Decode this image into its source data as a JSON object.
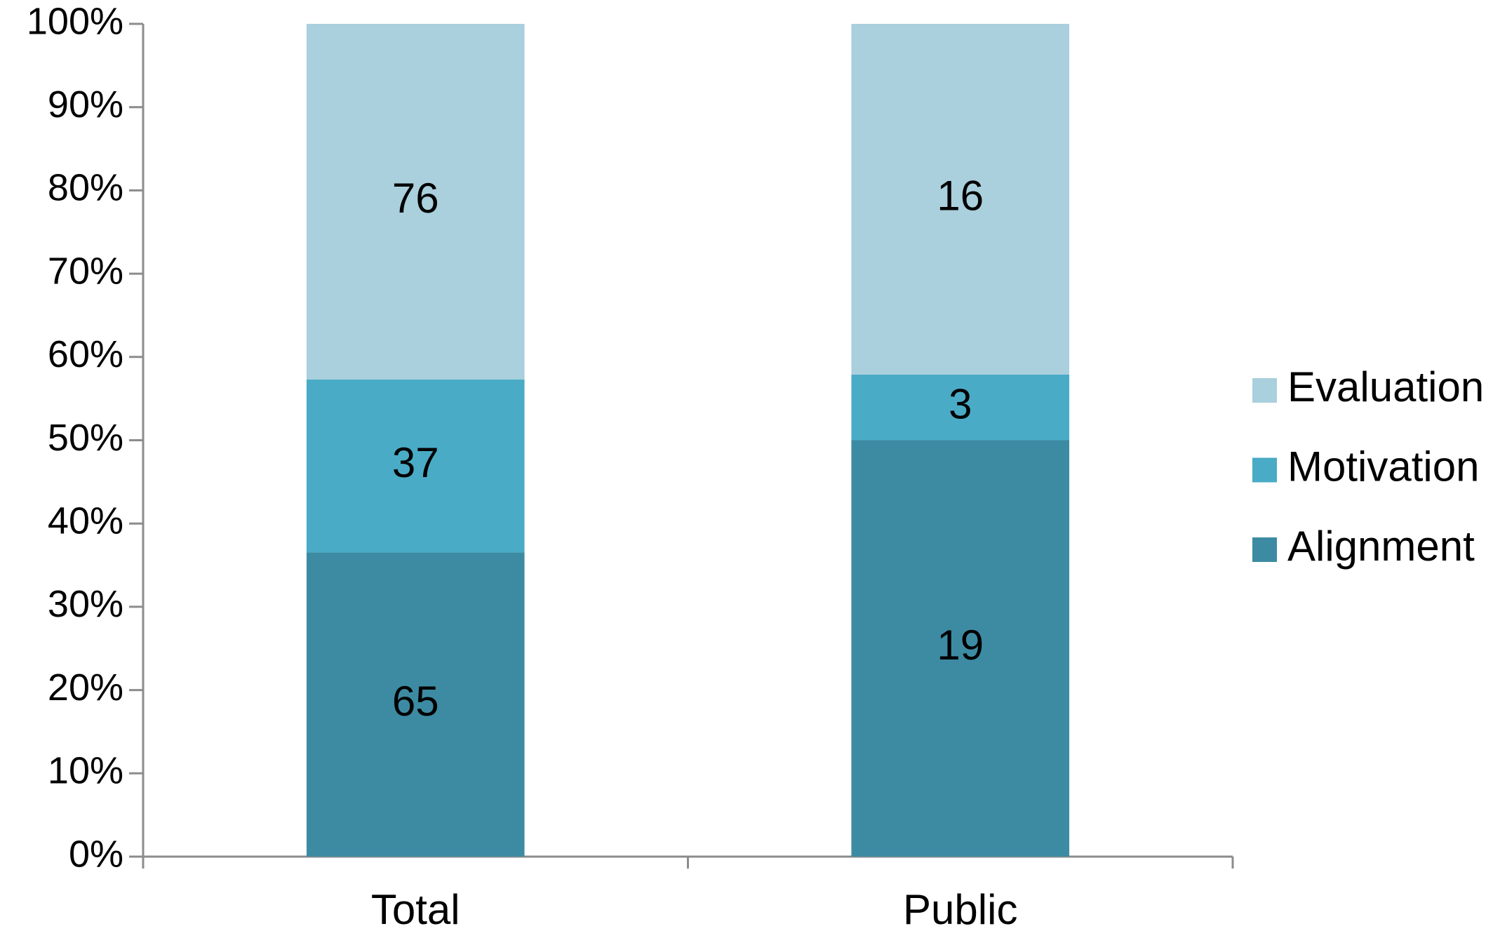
{
  "chart_data": {
    "type": "bar",
    "stack": "percent",
    "categories": [
      "Total",
      "Public"
    ],
    "series": [
      {
        "name": "Alignment",
        "color": "#3d8ba3",
        "values": [
          65,
          19
        ]
      },
      {
        "name": "Motivation",
        "color": "#4aabc6",
        "values": [
          37,
          3
        ]
      },
      {
        "name": "Evaluation",
        "color": "#aacfdd",
        "values": [
          76,
          16
        ]
      }
    ],
    "ylim": [
      0,
      100
    ],
    "yticks": [
      {
        "value": 0,
        "label": "0%"
      },
      {
        "value": 10,
        "label": "10%"
      },
      {
        "value": 20,
        "label": "20%"
      },
      {
        "value": 30,
        "label": "30%"
      },
      {
        "value": 40,
        "label": "40%"
      },
      {
        "value": 50,
        "label": "50%"
      },
      {
        "value": 60,
        "label": "60%"
      },
      {
        "value": 70,
        "label": "70%"
      },
      {
        "value": 80,
        "label": "80%"
      },
      {
        "value": 90,
        "label": "90%"
      },
      {
        "value": 100,
        "label": "100%"
      }
    ],
    "grid": false,
    "legend": "right"
  }
}
